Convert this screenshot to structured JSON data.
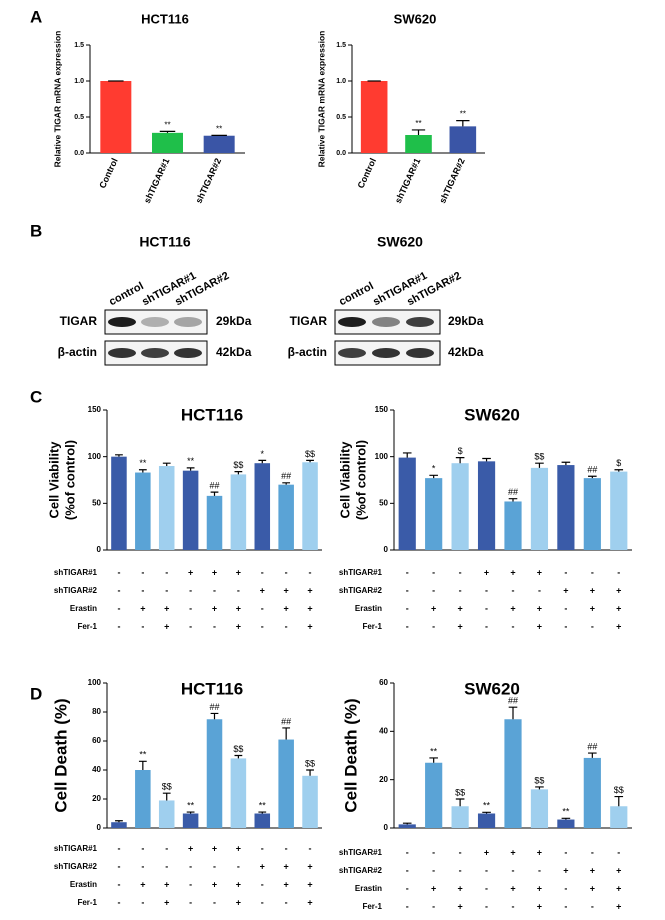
{
  "panels": [
    "A",
    "B",
    "C",
    "D"
  ],
  "blots": [
    {
      "title": "HCT116",
      "lanes": [
        "control",
        "shTIGAR#1",
        "shTIGAR#2"
      ],
      "rows": [
        {
          "name": "TIGAR",
          "size": "29kDa"
        },
        {
          "name": "β-actin",
          "size": "42kDa"
        }
      ]
    },
    {
      "title": "SW620",
      "lanes": [
        "control",
        "shTIGAR#1",
        "shTIGAR#2"
      ],
      "rows": [
        {
          "name": "TIGAR",
          "size": "29kDa"
        },
        {
          "name": "β-actin",
          "size": "42kDa"
        }
      ]
    }
  ],
  "chart_data": [
    {
      "type": "bar",
      "title": "HCT116",
      "ylabel": [
        "Relative TIGAR mRNA expression"
      ],
      "categories": [
        "Control",
        "shTIGAR#1",
        "shTIGAR#2"
      ],
      "values": [
        1.0,
        0.28,
        0.24
      ],
      "errors": [
        0,
        0.02,
        0.005
      ],
      "annotations": [
        null,
        "**",
        "**"
      ],
      "colors": [
        "#ff3b30",
        "#1fbf4a",
        "#3a55a6"
      ],
      "ylim": [
        0,
        1.5
      ],
      "yticks": [
        {
          "value": 0,
          "label": "0.0"
        },
        {
          "value": 0.5,
          "label": "0.5"
        },
        {
          "value": 1,
          "label": "1.0"
        },
        {
          "value": 1.5,
          "label": "1.5"
        }
      ]
    },
    {
      "type": "bar",
      "title": "SW620",
      "ylabel": [
        "Relative TIGAR mRNA expression"
      ],
      "categories": [
        "Control",
        "shTIGAR#1",
        "shTIGAR#2"
      ],
      "values": [
        1.0,
        0.25,
        0.37
      ],
      "errors": [
        0,
        0.07,
        0.08
      ],
      "annotations": [
        null,
        "**",
        "**"
      ],
      "colors": [
        "#ff3b30",
        "#1fbf4a",
        "#3a55a6"
      ],
      "ylim": [
        0,
        1.5
      ],
      "yticks": [
        {
          "value": 0,
          "label": "0.0"
        },
        {
          "value": 0.5,
          "label": "0.5"
        },
        {
          "value": 1,
          "label": "1.0"
        },
        {
          "value": 1.5,
          "label": "1.5"
        }
      ]
    },
    {
      "type": "bar",
      "title": "HCT116",
      "ylabel": [
        "Cell Viability",
        "(%of control)"
      ],
      "values": [
        100,
        83,
        90,
        85,
        58,
        81,
        93,
        70,
        94
      ],
      "errors": [
        2,
        3,
        3,
        3,
        4,
        3,
        3,
        2,
        2
      ],
      "annotations": [
        null,
        "**",
        null,
        "**",
        "##",
        "$$",
        "*",
        "##",
        "$$"
      ],
      "colors": [
        "#3a5ba8",
        "#5aa3d6",
        "#9fcfee",
        "#3a5ba8",
        "#5aa3d6",
        "#9fcfee",
        "#3a5ba8",
        "#5aa3d6",
        "#9fcfee"
      ],
      "ylim": [
        0,
        150
      ],
      "yticks": [
        0,
        50,
        100,
        150
      ],
      "conditions": [
        {
          "name": "shTIGAR#1",
          "marks": [
            "-",
            "-",
            "-",
            "+",
            "+",
            "+",
            "-",
            "-",
            "-"
          ]
        },
        {
          "name": "shTIGAR#2",
          "marks": [
            "-",
            "-",
            "-",
            "-",
            "-",
            "-",
            "+",
            "+",
            "+"
          ]
        },
        {
          "name": "Erastin",
          "marks": [
            "-",
            "+",
            "+",
            "-",
            "+",
            "+",
            "-",
            "+",
            "+"
          ]
        },
        {
          "name": "Fer-1",
          "marks": [
            "-",
            "-",
            "+",
            "-",
            "-",
            "+",
            "-",
            "-",
            "+"
          ]
        }
      ]
    },
    {
      "type": "bar",
      "title": "SW620",
      "ylabel": [
        "Cell Viability",
        "(%of control)"
      ],
      "values": [
        99,
        77,
        93,
        95,
        52,
        88,
        91,
        77,
        84
      ],
      "errors": [
        5,
        3,
        6,
        3,
        3,
        5,
        3,
        2,
        2
      ],
      "annotations": [
        null,
        "*",
        "$",
        null,
        "##",
        "$$",
        null,
        "##",
        "$"
      ],
      "colors": [
        "#3a5ba8",
        "#5aa3d6",
        "#9fcfee",
        "#3a5ba8",
        "#5aa3d6",
        "#9fcfee",
        "#3a5ba8",
        "#5aa3d6",
        "#9fcfee"
      ],
      "ylim": [
        0,
        150
      ],
      "yticks": [
        0,
        50,
        100,
        150
      ],
      "conditions": [
        {
          "name": "shTIGAR#1",
          "marks": [
            "-",
            "-",
            "-",
            "+",
            "+",
            "+",
            "-",
            "-",
            "-"
          ]
        },
        {
          "name": "shTIGAR#2",
          "marks": [
            "-",
            "-",
            "-",
            "-",
            "-",
            "-",
            "+",
            "+",
            "+"
          ]
        },
        {
          "name": "Erastin",
          "marks": [
            "-",
            "+",
            "+",
            "-",
            "+",
            "+",
            "-",
            "+",
            "+"
          ]
        },
        {
          "name": "Fer-1",
          "marks": [
            "-",
            "-",
            "+",
            "-",
            "-",
            "+",
            "-",
            "-",
            "+"
          ]
        }
      ]
    },
    {
      "type": "bar",
      "title": "HCT116",
      "ylabel": [
        "Cell Death (%)"
      ],
      "values": [
        4,
        40,
        19,
        10,
        75,
        48,
        10,
        61,
        36
      ],
      "errors": [
        1,
        6,
        5,
        1,
        4,
        2,
        1,
        8,
        4
      ],
      "annotations": [
        null,
        "**",
        "$$",
        "**",
        "##",
        "$$",
        "**",
        "##",
        "$$"
      ],
      "colors": [
        "#3a5ba8",
        "#5aa3d6",
        "#9fcfee",
        "#3a5ba8",
        "#5aa3d6",
        "#9fcfee",
        "#3a5ba8",
        "#5aa3d6",
        "#9fcfee"
      ],
      "ylim": [
        0,
        100
      ],
      "yticks": [
        0,
        20,
        40,
        60,
        80,
        100
      ],
      "conditions": [
        {
          "name": "shTIGAR#1",
          "marks": [
            "-",
            "-",
            "-",
            "+",
            "+",
            "+",
            "-",
            "-",
            "-"
          ]
        },
        {
          "name": "shTIGAR#2",
          "marks": [
            "-",
            "-",
            "-",
            "-",
            "-",
            "-",
            "+",
            "+",
            "+"
          ]
        },
        {
          "name": "Erastin",
          "marks": [
            "-",
            "+",
            "+",
            "-",
            "+",
            "+",
            "-",
            "+",
            "+"
          ]
        },
        {
          "name": "Fer-1",
          "marks": [
            "-",
            "-",
            "+",
            "-",
            "-",
            "+",
            "-",
            "-",
            "+"
          ]
        }
      ]
    },
    {
      "type": "bar",
      "title": "SW620",
      "ylabel": [
        "Cell Death (%)"
      ],
      "values": [
        1.5,
        27,
        9,
        6,
        45,
        16,
        3.5,
        29,
        9
      ],
      "errors": [
        0.5,
        2,
        3,
        0.5,
        5,
        1,
        0.5,
        2,
        4
      ],
      "annotations": [
        null,
        "**",
        "$$",
        "**",
        "##",
        "$$",
        "**",
        "##",
        "$$"
      ],
      "colors": [
        "#3a5ba8",
        "#5aa3d6",
        "#9fcfee",
        "#3a5ba8",
        "#5aa3d6",
        "#9fcfee",
        "#3a5ba8",
        "#5aa3d6",
        "#9fcfee"
      ],
      "ylim": [
        0,
        60
      ],
      "yticks": [
        0,
        20,
        40,
        60
      ],
      "conditions": [
        {
          "name": "shTIGAR#1",
          "marks": [
            "-",
            "-",
            "-",
            "+",
            "+",
            "+",
            "-",
            "-",
            "-"
          ]
        },
        {
          "name": "shTIGAR#2",
          "marks": [
            "-",
            "-",
            "-",
            "-",
            "-",
            "-",
            "+",
            "+",
            "+"
          ]
        },
        {
          "name": "Erastin",
          "marks": [
            "-",
            "+",
            "+",
            "-",
            "+",
            "+",
            "-",
            "+",
            "+"
          ]
        },
        {
          "name": "Fer-1",
          "marks": [
            "-",
            "-",
            "+",
            "-",
            "-",
            "+",
            "-",
            "-",
            "+"
          ]
        }
      ]
    }
  ]
}
